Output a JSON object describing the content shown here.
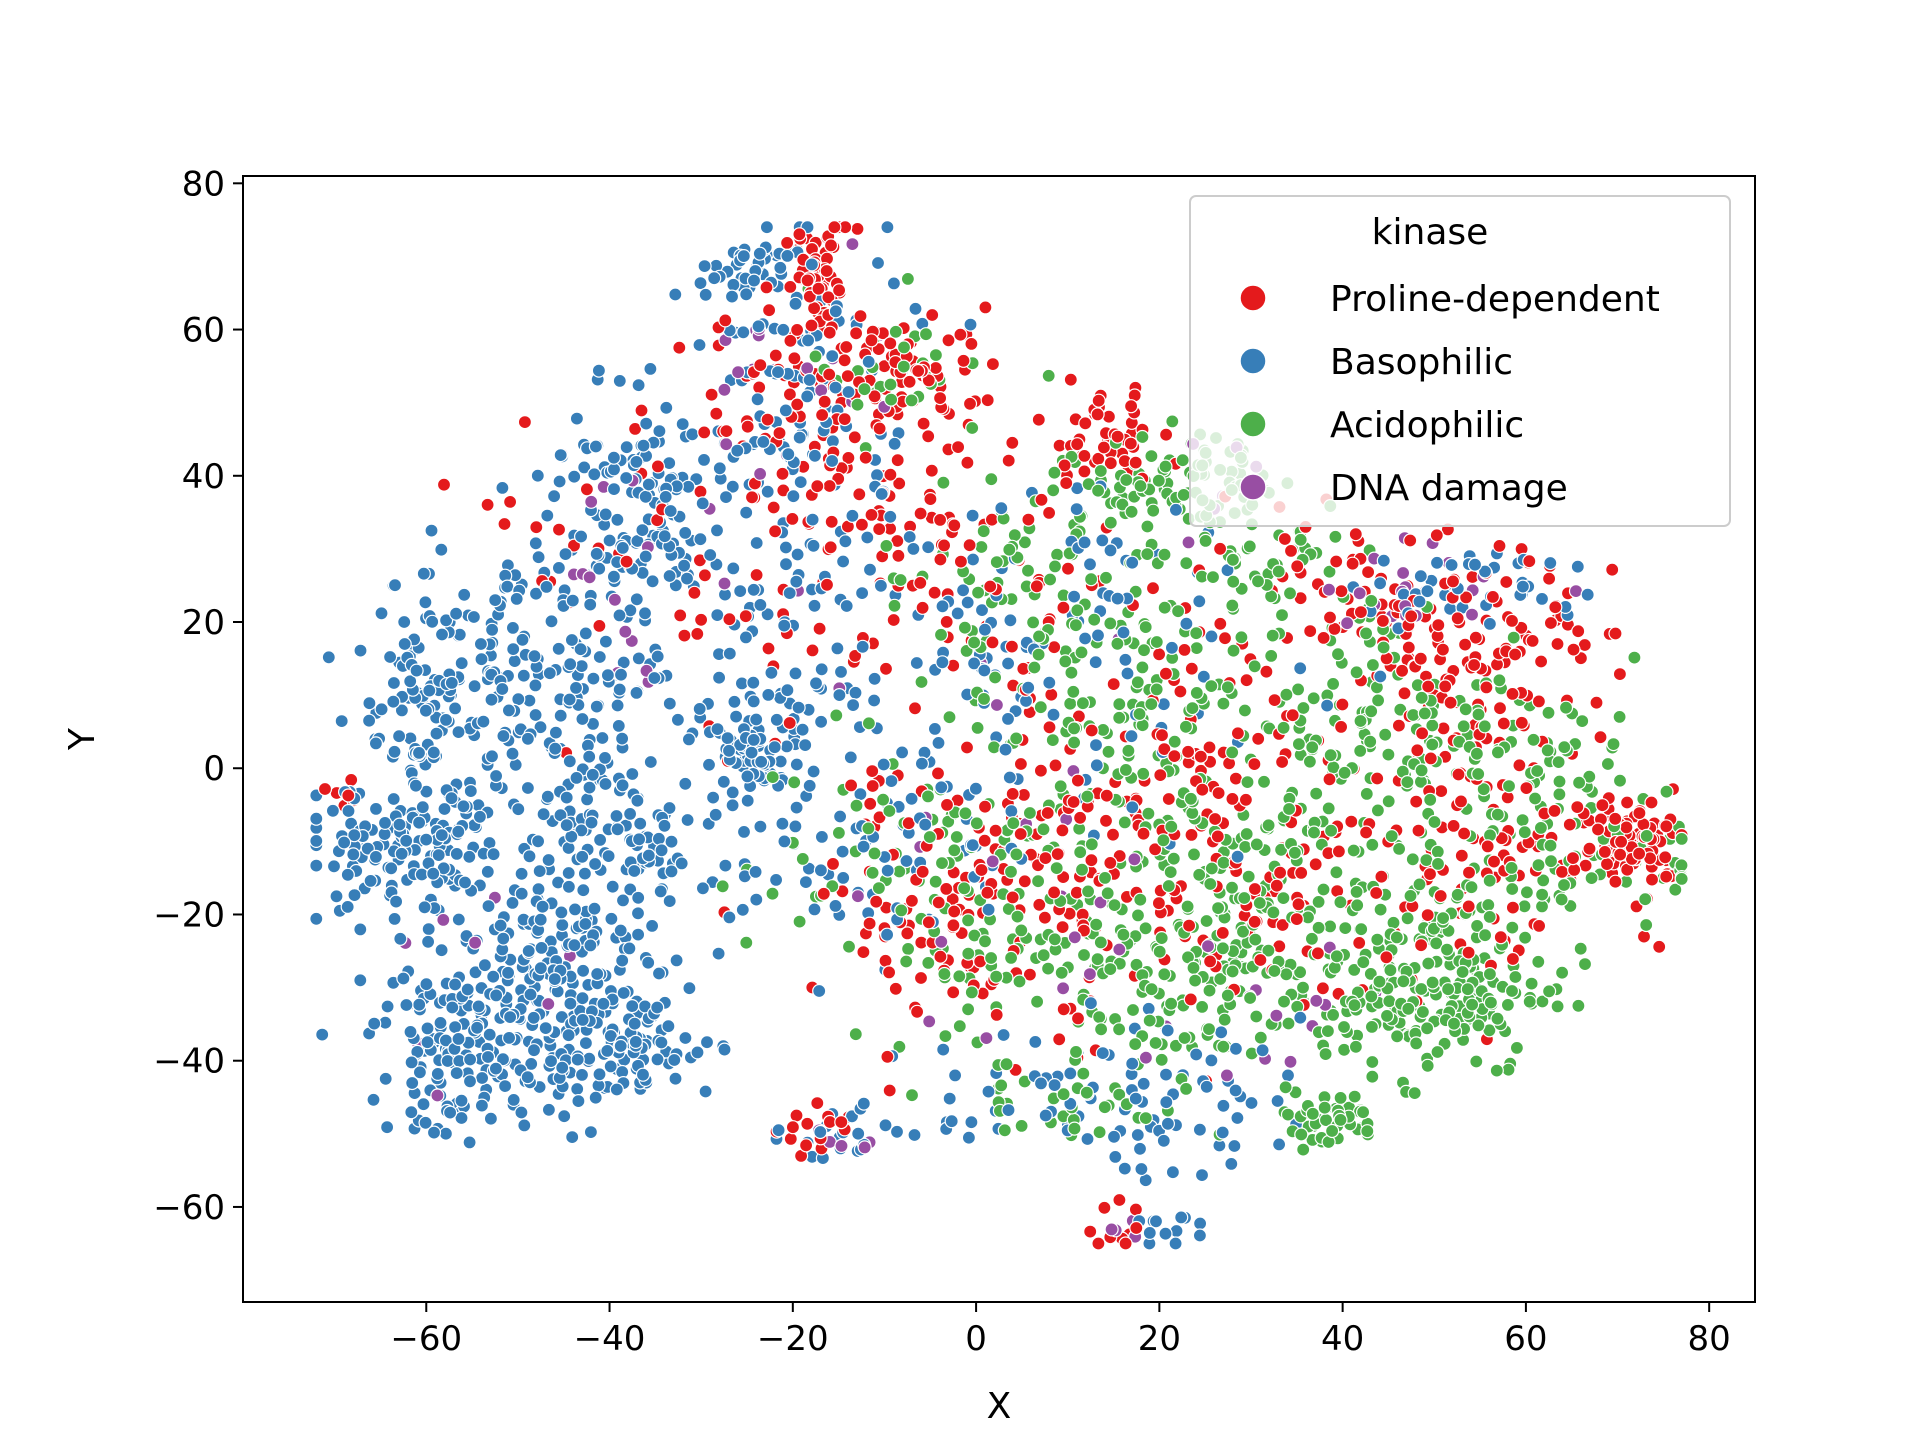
{
  "chart_data": {
    "type": "scatter",
    "title": "",
    "xlabel": "X",
    "ylabel": "Y",
    "xlim": [
      -80,
      85
    ],
    "ylim": [
      -73,
      81
    ],
    "xticks": [
      -60,
      -40,
      -20,
      0,
      20,
      40,
      60,
      80
    ],
    "yticks": [
      80,
      60,
      40,
      20,
      0,
      -20,
      -40,
      -60
    ],
    "xtick_labels": [
      "−60",
      "−40",
      "−20",
      "0",
      "20",
      "40",
      "60",
      "80"
    ],
    "ytick_labels": [
      "80",
      "60",
      "40",
      "20",
      "0",
      "−20",
      "−40",
      "−60"
    ],
    "grid": false,
    "legend": {
      "title": "kinase",
      "placement": "top-right",
      "entries": [
        "Proline-dependent",
        "Basophilic",
        "Acidophilic",
        "DNA damage"
      ]
    },
    "marker_edge_color": "#ffffff",
    "series": [
      {
        "name": "Proline-dependent",
        "color": "#e41a1c",
        "clusters": [
          {
            "cx": -17,
            "cy": 66,
            "sx": 2,
            "sy": 4,
            "n": 60
          },
          {
            "cx": -17,
            "cy": 50,
            "sx": 6,
            "sy": 8,
            "n": 90
          },
          {
            "cx": -6,
            "cy": 55,
            "sx": 5,
            "sy": 4,
            "n": 50
          },
          {
            "cx": -10,
            "cy": 30,
            "sx": 10,
            "sy": 10,
            "n": 100
          },
          {
            "cx": 14,
            "cy": 45,
            "sx": 3,
            "sy": 3,
            "n": 50
          },
          {
            "cx": 10,
            "cy": 0,
            "sx": 15,
            "sy": 15,
            "n": 130
          },
          {
            "cx": 0,
            "cy": -20,
            "sx": 8,
            "sy": 8,
            "n": 100
          },
          {
            "cx": 45,
            "cy": 20,
            "sx": 12,
            "sy": 6,
            "n": 110
          },
          {
            "cx": 55,
            "cy": 10,
            "sx": 6,
            "sy": 8,
            "n": 80
          },
          {
            "cx": 72,
            "cy": -10,
            "sx": 3,
            "sy": 3,
            "n": 90
          },
          {
            "cx": 55,
            "cy": -10,
            "sx": 10,
            "sy": 8,
            "n": 90
          },
          {
            "cx": 30,
            "cy": -15,
            "sx": 12,
            "sy": 12,
            "n": 110
          },
          {
            "cx": -17,
            "cy": -50,
            "sx": 2,
            "sy": 2,
            "n": 15
          },
          {
            "cx": 16,
            "cy": -63,
            "sx": 2,
            "sy": 1.5,
            "n": 10
          },
          {
            "cx": -69,
            "cy": -4,
            "sx": 1.5,
            "sy": 1.5,
            "n": 6
          },
          {
            "cx": -40,
            "cy": 30,
            "sx": 6,
            "sy": 10,
            "n": 30
          }
        ]
      },
      {
        "name": "Basophilic",
        "color": "#377eb8",
        "clusters": [
          {
            "cx": -58,
            "cy": 10,
            "sx": 5,
            "sy": 8,
            "n": 150
          },
          {
            "cx": -62,
            "cy": -12,
            "sx": 6,
            "sy": 5,
            "n": 140
          },
          {
            "cx": -56,
            "cy": -38,
            "sx": 5,
            "sy": 6,
            "n": 160
          },
          {
            "cx": -45,
            "cy": -25,
            "sx": 5,
            "sy": 5,
            "n": 120
          },
          {
            "cx": -40,
            "cy": -38,
            "sx": 6,
            "sy": 4,
            "n": 130
          },
          {
            "cx": -45,
            "cy": 10,
            "sx": 6,
            "sy": 12,
            "n": 150
          },
          {
            "cx": -38,
            "cy": 35,
            "sx": 5,
            "sy": 8,
            "n": 120
          },
          {
            "cx": -35,
            "cy": -10,
            "sx": 6,
            "sy": 8,
            "n": 100
          },
          {
            "cx": -24,
            "cy": 3,
            "sx": 3,
            "sy": 3,
            "n": 60
          },
          {
            "cx": -20,
            "cy": 50,
            "sx": 7,
            "sy": 12,
            "n": 120
          },
          {
            "cx": -25,
            "cy": 68,
            "sx": 3,
            "sy": 2,
            "n": 40
          },
          {
            "cx": -20,
            "cy": 20,
            "sx": 7,
            "sy": 10,
            "n": 70
          },
          {
            "cx": 5,
            "cy": 15,
            "sx": 15,
            "sy": 12,
            "n": 130
          },
          {
            "cx": 15,
            "cy": -45,
            "sx": 10,
            "sy": 5,
            "n": 90
          },
          {
            "cx": 20,
            "cy": -63,
            "sx": 2,
            "sy": 1.5,
            "n": 12
          },
          {
            "cx": -15,
            "cy": -50,
            "sx": 3,
            "sy": 2,
            "n": 20
          },
          {
            "cx": 55,
            "cy": 25,
            "sx": 6,
            "sy": 3,
            "n": 40
          },
          {
            "cx": -10,
            "cy": -10,
            "sx": 8,
            "sy": 8,
            "n": 70
          }
        ]
      },
      {
        "name": "Acidophilic",
        "color": "#4daf4a",
        "clusters": [
          {
            "cx": 22,
            "cy": 40,
            "sx": 5,
            "sy": 3,
            "n": 80
          },
          {
            "cx": 20,
            "cy": 5,
            "sx": 12,
            "sy": 12,
            "n": 180
          },
          {
            "cx": 20,
            "cy": -28,
            "sx": 10,
            "sy": 8,
            "n": 180
          },
          {
            "cx": 50,
            "cy": -30,
            "sx": 6,
            "sy": 6,
            "n": 190
          },
          {
            "cx": 48,
            "cy": 5,
            "sx": 10,
            "sy": 10,
            "n": 150
          },
          {
            "cx": 38,
            "cy": -48,
            "sx": 3,
            "sy": 2,
            "n": 50
          },
          {
            "cx": 35,
            "cy": -20,
            "sx": 8,
            "sy": 10,
            "n": 100
          },
          {
            "cx": 62,
            "cy": -10,
            "sx": 8,
            "sy": 8,
            "n": 110
          },
          {
            "cx": -5,
            "cy": -15,
            "sx": 10,
            "sy": 10,
            "n": 110
          },
          {
            "cx": 5,
            "cy": 25,
            "sx": 8,
            "sy": 8,
            "n": 70
          },
          {
            "cx": -10,
            "cy": 55,
            "sx": 4,
            "sy": 5,
            "n": 30
          },
          {
            "cx": 10,
            "cy": -45,
            "sx": 5,
            "sy": 4,
            "n": 30
          },
          {
            "cx": 30,
            "cy": 30,
            "sx": 6,
            "sy": 4,
            "n": 50
          }
        ]
      },
      {
        "name": "DNA damage",
        "color": "#984ea3",
        "clusters": [
          {
            "cx": -20,
            "cy": 55,
            "sx": 6,
            "sy": 10,
            "n": 20
          },
          {
            "cx": -38,
            "cy": 25,
            "sx": 6,
            "sy": 10,
            "n": 15
          },
          {
            "cx": 50,
            "cy": 25,
            "sx": 6,
            "sy": 3,
            "n": 20
          },
          {
            "cx": 5,
            "cy": -10,
            "sx": 10,
            "sy": 15,
            "n": 20
          },
          {
            "cx": 30,
            "cy": -35,
            "sx": 10,
            "sy": 8,
            "n": 15
          },
          {
            "cx": -15,
            "cy": -50,
            "sx": 2,
            "sy": 2,
            "n": 5
          },
          {
            "cx": -55,
            "cy": -25,
            "sx": 5,
            "sy": 10,
            "n": 8
          },
          {
            "cx": 17,
            "cy": -63,
            "sx": 2,
            "sy": 1.5,
            "n": 4
          },
          {
            "cx": 20,
            "cy": 40,
            "sx": 5,
            "sy": 3,
            "n": 6
          }
        ]
      }
    ]
  }
}
